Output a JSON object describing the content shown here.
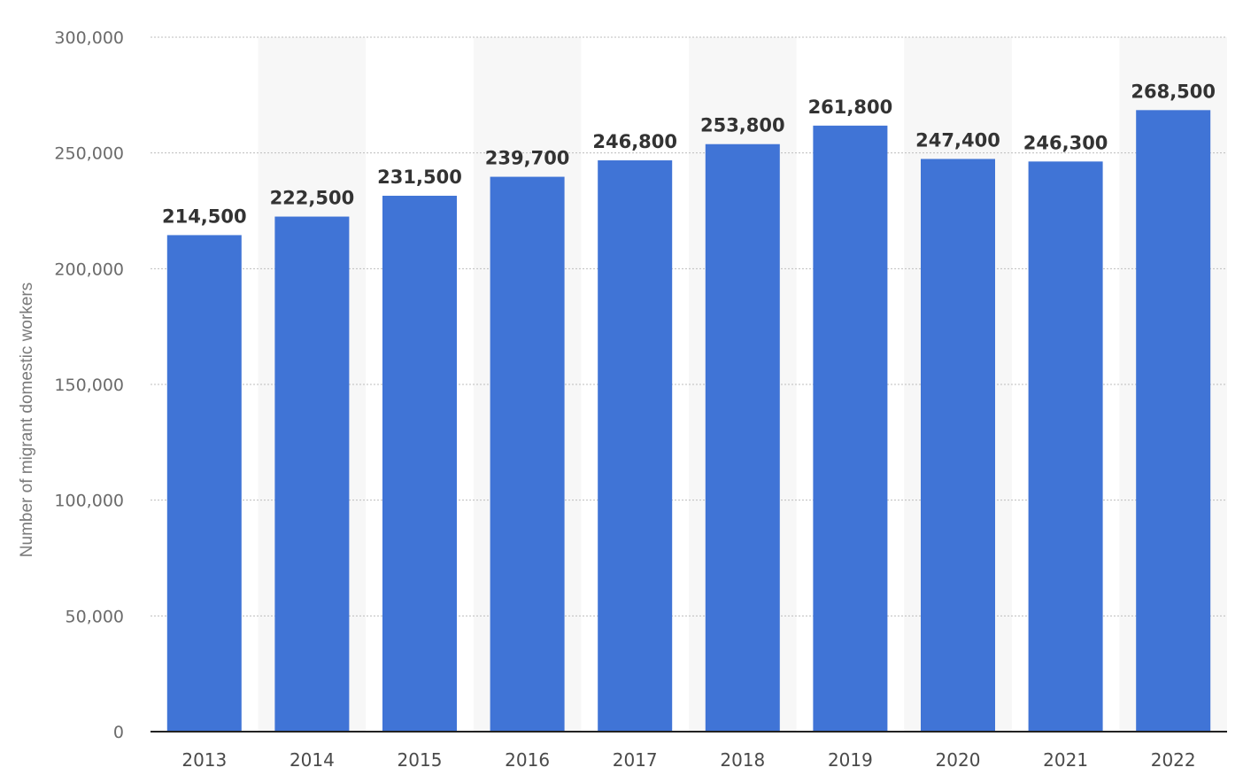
{
  "chart_data": {
    "type": "bar",
    "categories": [
      "2013",
      "2014",
      "2015",
      "2016",
      "2017",
      "2018",
      "2019",
      "2020",
      "2021",
      "2022"
    ],
    "values": [
      214500,
      222500,
      231500,
      239700,
      246800,
      253800,
      261800,
      247400,
      246300,
      268500
    ],
    "value_labels": [
      "214,500",
      "222,500",
      "231,500",
      "239,700",
      "246,800",
      "253,800",
      "261,800",
      "247,400",
      "246,300",
      "268,500"
    ],
    "ylabel": "Number of migrant domestic workers",
    "xlabel": "",
    "ylim": [
      0,
      300000
    ],
    "yticks": [
      0,
      50000,
      100000,
      150000,
      200000,
      250000,
      300000
    ],
    "ytick_labels": [
      "0",
      "50,000",
      "100,000",
      "150,000",
      "200,000",
      "250,000",
      "300,000"
    ],
    "grid": true,
    "bar_color": "#4074d6",
    "band_color": "#f7f7f7",
    "grid_color": "#bdbdbd"
  }
}
